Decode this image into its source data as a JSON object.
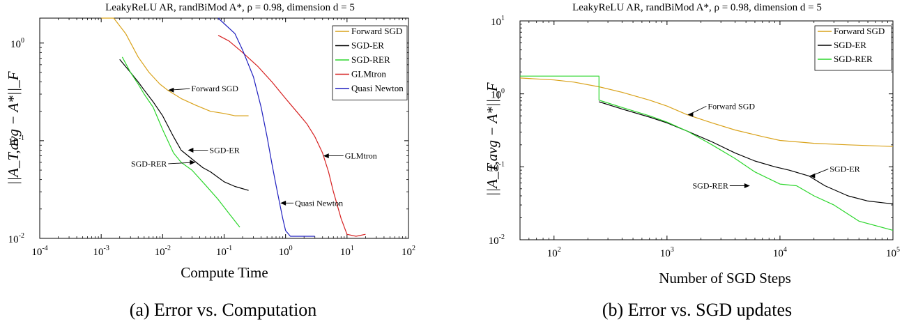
{
  "chart_data": [
    {
      "type": "line",
      "title": "LeakyReLU AR, randBiMod A*, ρ = 0.98, dimension d = 5",
      "xlabel": "Compute Time",
      "ylabel": "||A_T,avg − A*||_F",
      "xscale": "log",
      "yscale": "log",
      "xlim": [
        0.0001,
        100
      ],
      "ylim": [
        0.01,
        1.8
      ],
      "xticks": [
        {
          "v": 0.0001,
          "m": "10",
          "e": "-4"
        },
        {
          "v": 0.001,
          "m": "10",
          "e": "-3"
        },
        {
          "v": 0.01,
          "m": "10",
          "e": "-2"
        },
        {
          "v": 0.1,
          "m": "10",
          "e": "-1"
        },
        {
          "v": 1,
          "m": "10",
          "e": "0"
        },
        {
          "v": 10,
          "m": "10",
          "e": "1"
        },
        {
          "v": 100,
          "m": "10",
          "e": "2"
        }
      ],
      "yticks": [
        {
          "v": 0.01,
          "m": "10",
          "e": "-2"
        },
        {
          "v": 0.1,
          "m": "10",
          "e": "-1"
        },
        {
          "v": 1,
          "m": "10",
          "e": "0"
        }
      ],
      "legend": "top-right",
      "caption": "(a) Error vs. Computation",
      "series": [
        {
          "name": "Forward SGD",
          "color": "#D9A21A",
          "x": [
            0.001,
            0.0016,
            0.0025,
            0.004,
            0.006,
            0.009,
            0.012,
            0.02,
            0.035,
            0.06,
            0.1,
            0.15,
            0.25
          ],
          "y": [
            1.8,
            1.8,
            1.25,
            0.72,
            0.5,
            0.38,
            0.33,
            0.27,
            0.23,
            0.2,
            0.19,
            0.18,
            0.18
          ]
        },
        {
          "name": "SGD-ER",
          "color": "#000000",
          "x": [
            0.002,
            0.003,
            0.004,
            0.005,
            0.007,
            0.01,
            0.015,
            0.02,
            0.03,
            0.045,
            0.06,
            0.1,
            0.15,
            0.25
          ],
          "y": [
            0.68,
            0.5,
            0.4,
            0.33,
            0.25,
            0.18,
            0.11,
            0.08,
            0.065,
            0.053,
            0.048,
            0.038,
            0.034,
            0.031
          ]
        },
        {
          "name": "SGD-RER",
          "color": "#2BD62B",
          "x": [
            0.0022,
            0.003,
            0.004,
            0.005,
            0.007,
            0.01,
            0.015,
            0.02,
            0.03,
            0.05,
            0.08,
            0.12,
            0.18
          ],
          "y": [
            0.72,
            0.5,
            0.38,
            0.3,
            0.22,
            0.13,
            0.075,
            0.06,
            0.05,
            0.035,
            0.025,
            0.018,
            0.013
          ]
        },
        {
          "name": "GLMtron",
          "color": "#D62020",
          "x": [
            0.08,
            0.12,
            0.2,
            0.35,
            0.6,
            1,
            1.5,
            2.2,
            3,
            4,
            5,
            6,
            8,
            10,
            14,
            20
          ],
          "y": [
            1.2,
            1.05,
            0.8,
            0.58,
            0.4,
            0.27,
            0.2,
            0.15,
            0.11,
            0.075,
            0.048,
            0.03,
            0.016,
            0.011,
            0.0105,
            0.011
          ]
        },
        {
          "name": "Quasi Newton",
          "color": "#1F1FBF",
          "x": [
            0.08,
            0.15,
            0.2,
            0.3,
            0.4,
            0.5,
            0.6,
            0.7,
            0.8,
            0.9,
            1,
            1.2,
            1.5,
            2,
            3
          ],
          "y": [
            1.8,
            1.25,
            0.85,
            0.45,
            0.22,
            0.11,
            0.058,
            0.035,
            0.023,
            0.016,
            0.012,
            0.0105,
            0.0105,
            0.0105,
            0.0105
          ]
        }
      ],
      "annotations": [
        {
          "text": "Forward SGD",
          "x": 0.012,
          "y": 0.33
        },
        {
          "text": "SGD-ER",
          "x": 0.025,
          "y": 0.08
        },
        {
          "text": "SGD-RER",
          "x": 0.035,
          "y": 0.06
        },
        {
          "text": "GLMtron",
          "x": 4,
          "y": 0.07
        },
        {
          "text": "Quasi Newton",
          "x": 0.8,
          "y": 0.023
        }
      ]
    },
    {
      "type": "line",
      "title": "LeakyReLU AR, randBiMod A*, ρ = 0.98, dimension d = 5",
      "xlabel": "Number of SGD Steps",
      "ylabel": "||A_T,avg − A*||_F",
      "xscale": "log",
      "yscale": "log",
      "xlim": [
        50,
        100000
      ],
      "ylim": [
        0.01,
        10
      ],
      "xticks": [
        {
          "v": 100,
          "m": "10",
          "e": "2"
        },
        {
          "v": 1000,
          "m": "10",
          "e": "3"
        },
        {
          "v": 10000,
          "m": "10",
          "e": "4"
        },
        {
          "v": 100000,
          "m": "10",
          "e": "5"
        }
      ],
      "yticks": [
        {
          "v": 0.01,
          "m": "10",
          "e": "-2"
        },
        {
          "v": 0.1,
          "m": "10",
          "e": "-1"
        },
        {
          "v": 1,
          "m": "10",
          "e": "0"
        },
        {
          "v": 10,
          "m": "10",
          "e": "1"
        }
      ],
      "legend": "top-right",
      "caption": "(b) Error vs. SGD updates",
      "series": [
        {
          "name": "Forward SGD",
          "color": "#D9A21A",
          "x": [
            50,
            100,
            150,
            250,
            400,
            700,
            1000,
            1500,
            2500,
            4000,
            7000,
            10000,
            20000,
            40000,
            100000
          ],
          "y": [
            1.65,
            1.55,
            1.45,
            1.25,
            1.05,
            0.82,
            0.68,
            0.52,
            0.4,
            0.32,
            0.26,
            0.23,
            0.21,
            0.2,
            0.19
          ]
        },
        {
          "name": "SGD-ER",
          "color": "#000000",
          "x": [
            250,
            400,
            700,
            1000,
            1500,
            2500,
            4000,
            6000,
            9000,
            12000,
            18000,
            25000,
            40000,
            60000,
            100000
          ],
          "y": [
            0.78,
            0.62,
            0.48,
            0.4,
            0.31,
            0.22,
            0.155,
            0.12,
            0.1,
            0.09,
            0.075,
            0.055,
            0.04,
            0.034,
            0.031
          ]
        },
        {
          "name": "SGD-RER",
          "color": "#2BD62B",
          "x": [
            50,
            250,
            250,
            400,
            700,
            1000,
            1500,
            2500,
            4000,
            6000,
            10000,
            14000,
            20000,
            30000,
            50000,
            100000
          ],
          "y": [
            1.75,
            1.75,
            0.82,
            0.65,
            0.5,
            0.41,
            0.31,
            0.2,
            0.13,
            0.085,
            0.058,
            0.055,
            0.04,
            0.03,
            0.018,
            0.0135
          ]
        }
      ],
      "annotations": [
        {
          "text": "Forward SGD",
          "x": 1500,
          "y": 0.52
        },
        {
          "text": "SGD-ER",
          "x": 18000,
          "y": 0.075
        },
        {
          "text": "SGD-RER",
          "x": 5500,
          "y": 0.055
        }
      ]
    }
  ]
}
